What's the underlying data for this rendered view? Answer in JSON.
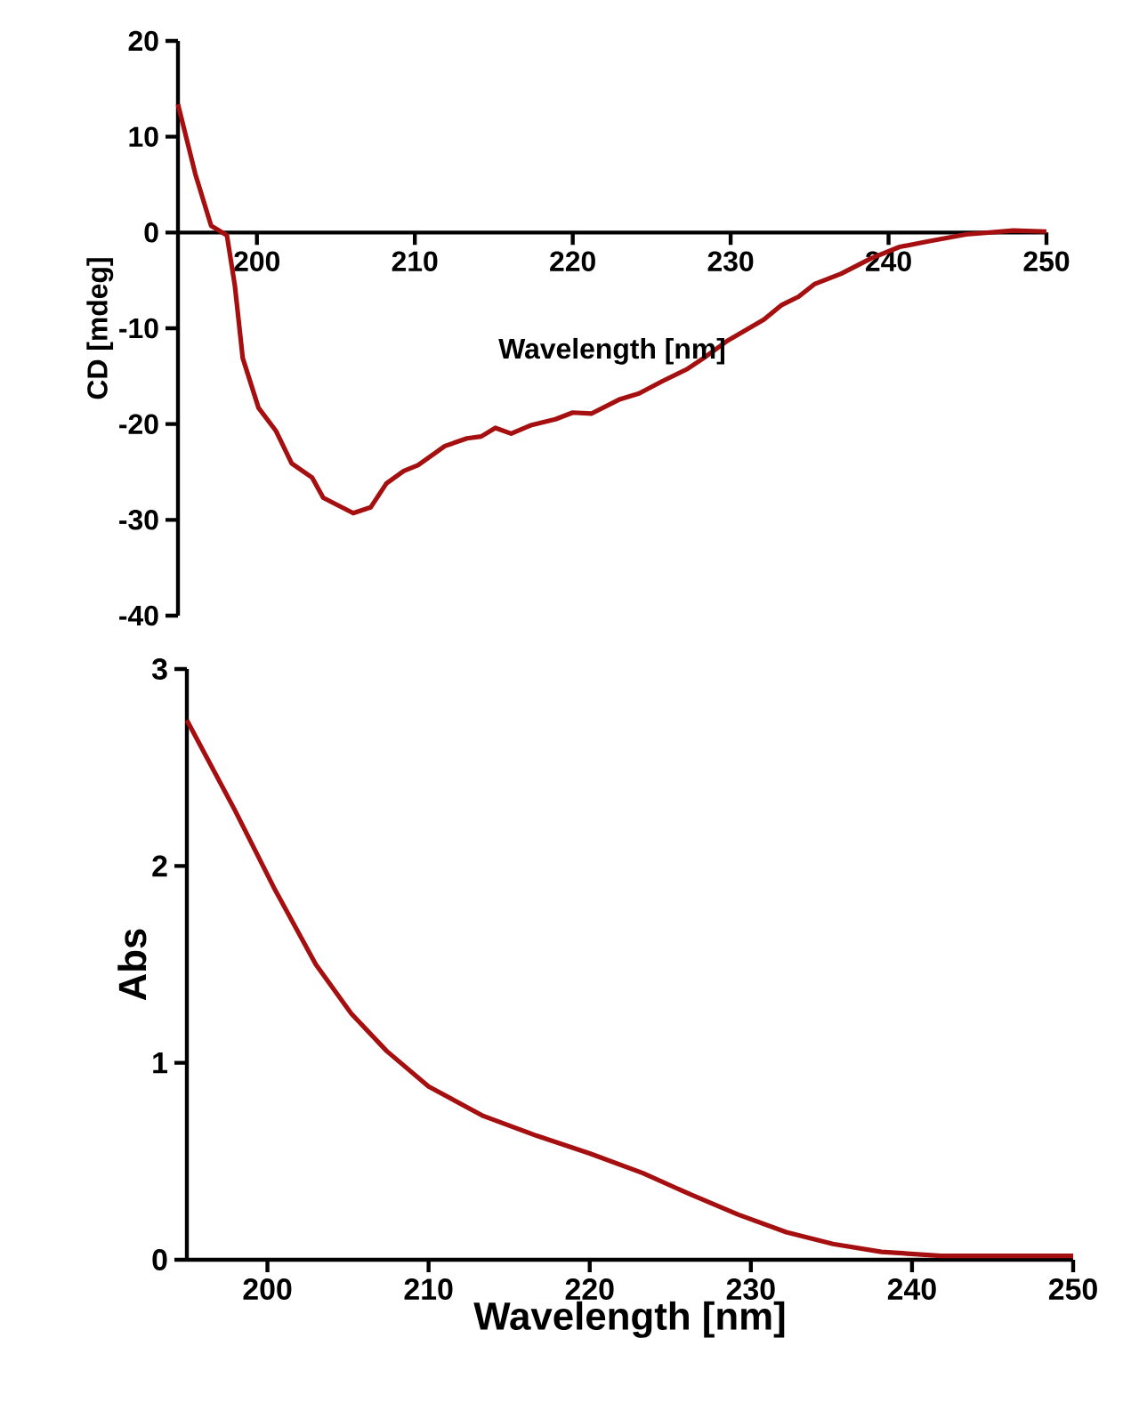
{
  "chart_data": [
    {
      "type": "line",
      "xlabel": "Wavelength [nm]",
      "ylabel": "CD [mdeg]",
      "color": "#a50f0f",
      "xlim": [
        195,
        250
      ],
      "ylim": [
        -40,
        20
      ],
      "xticks": [
        200,
        210,
        220,
        230,
        240,
        250
      ],
      "yticks": [
        -40,
        -30,
        -20,
        -10,
        0,
        10,
        20
      ],
      "x": [
        195,
        196.1,
        197.1,
        198.1,
        198.6,
        199.1,
        200.1,
        201.2,
        202.2,
        203.5,
        204.2,
        206.1,
        207.2,
        208.2,
        209.3,
        210.2,
        211.9,
        213.3,
        214.2,
        215.1,
        216.1,
        217.4,
        218.9,
        220.0,
        221.2,
        223.0,
        224.2,
        225.7,
        227.2,
        228.3,
        229.8,
        232.1,
        233.2,
        234.3,
        235.3,
        237.0,
        238.9,
        240.7,
        242.6,
        244.9,
        247.9,
        250
      ],
      "values": [
        13.4,
        6.1,
        0.7,
        -0.3,
        -5.5,
        -13.1,
        -18.3,
        -20.7,
        -24.1,
        -25.6,
        -27.7,
        -29.3,
        -28.7,
        -26.2,
        -24.9,
        -24.3,
        -22.3,
        -21.5,
        -21.3,
        -20.4,
        -21.0,
        -20.1,
        -19.5,
        -18.8,
        -18.9,
        -17.4,
        -16.8,
        -15.5,
        -14.3,
        -13.1,
        -11.3,
        -9.1,
        -7.6,
        -6.7,
        -5.4,
        -4.3,
        -2.7,
        -1.5,
        -0.9,
        -0.2,
        0.2,
        0.1
      ]
    },
    {
      "type": "line",
      "xlabel": "Wavelength [nm]",
      "ylabel": "Abs",
      "color": "#a50f0f",
      "xlim": [
        195,
        250
      ],
      "ylim": [
        0,
        3
      ],
      "xticks": [
        200,
        210,
        220,
        230,
        240,
        250
      ],
      "yticks": [
        0,
        1,
        2,
        3
      ],
      "x": [
        195,
        198.0,
        200.4,
        203.0,
        205.2,
        207.4,
        210.0,
        213.4,
        216.7,
        220.0,
        223.3,
        226.3,
        229.2,
        232.2,
        235.1,
        238.1,
        241.8,
        245.5,
        250
      ],
      "values": [
        2.74,
        2.28,
        1.89,
        1.5,
        1.25,
        1.06,
        0.88,
        0.73,
        0.63,
        0.54,
        0.44,
        0.33,
        0.23,
        0.14,
        0.08,
        0.04,
        0.02,
        0.02,
        0.02
      ]
    }
  ]
}
